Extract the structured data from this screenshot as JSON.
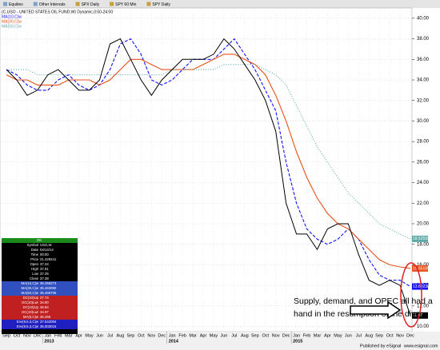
{
  "toolbar": [
    "Equities",
    "Other Intervals",
    "SPX Daily",
    "SPY 60 Min",
    "SPY Daily"
  ],
  "chart_data": {
    "type": "line",
    "title": "(C,USO - UNITED STATES OIL FUND,W) Dynamic,0:00-24:00",
    "categories": [
      "Sep",
      "Oct",
      "Nov",
      "Dec",
      "Jan",
      "Feb",
      "Mar",
      "Apr",
      "May",
      "Jun",
      "Jul",
      "Aug",
      "Sep",
      "Oct",
      "Nov",
      "Dec",
      "Jan",
      "Feb",
      "Mar",
      "Apr",
      "May",
      "Jun",
      "Jul",
      "Aug",
      "Sep",
      "Oct",
      "Nov",
      "Dec",
      "Jan",
      "Feb",
      "Mar",
      "Apr",
      "May",
      "Jun",
      "Jul",
      "Aug",
      "Sep",
      "Oct",
      "Nov",
      "Dec"
    ],
    "years": [
      "2013",
      "2014",
      "2015"
    ],
    "series": [
      {
        "name": "MA(10,C)w",
        "color": "#1010ff",
        "dash": "4,2",
        "last_label": "13.892384",
        "values": [
          35,
          34.5,
          33.5,
          33,
          33,
          34,
          34.5,
          33.5,
          33,
          33.5,
          35,
          37.5,
          38,
          36.5,
          34,
          33.5,
          34,
          35,
          36,
          36,
          36,
          37,
          38,
          36.5,
          35,
          33,
          31,
          26,
          22,
          19.5,
          18.5,
          18,
          18.5,
          19.5,
          18.5,
          16.5,
          15,
          14.5,
          14.5,
          13.89
        ]
      },
      {
        "name": "MA(30,C)w",
        "color": "#e8501a",
        "dash": "",
        "last_label": "15.651854",
        "values": [
          34.5,
          34,
          34,
          33.5,
          33.5,
          33.5,
          34,
          34,
          34,
          33.5,
          34,
          35,
          36,
          36,
          35.5,
          35,
          35,
          35,
          35,
          35.5,
          36,
          36.5,
          36.5,
          36,
          35.5,
          34.5,
          32.5,
          30,
          27,
          24.5,
          22.5,
          21,
          20,
          19.5,
          18.5,
          17.5,
          16.5,
          16,
          15.8,
          15.65
        ]
      },
      {
        "name": "MA(50,C)w",
        "color": "#5fa8a8",
        "dash": "1,2",
        "last_label": "18.525921",
        "values": [
          35,
          35,
          35,
          34.5,
          34.5,
          34.5,
          34.5,
          34.5,
          34.5,
          34.5,
          34.5,
          34.5,
          34.5,
          34.5,
          34.5,
          34.5,
          35,
          35,
          35,
          35,
          35,
          35.5,
          35.5,
          35.5,
          35.5,
          35,
          34.5,
          33.5,
          31.5,
          29.5,
          27.5,
          26,
          24.5,
          23,
          22,
          21,
          20,
          19.5,
          19,
          18.53
        ]
      },
      {
        "name": "USO",
        "color": "#000000",
        "dash": "",
        "last_label": "11.07",
        "values": [
          35,
          34,
          32.5,
          33,
          34.5,
          35,
          34,
          33,
          33,
          34,
          37.5,
          38,
          36,
          34,
          32.5,
          34,
          35,
          36,
          36,
          36,
          36.5,
          38,
          37,
          35.5,
          34,
          32,
          29,
          22,
          19,
          19,
          17.5,
          19.5,
          20,
          20,
          17,
          14.5,
          14,
          14.5,
          14,
          11.07
        ]
      }
    ],
    "ylim": [
      9.5,
      41
    ],
    "yticks": [
      {
        "value": 10,
        "label": "10.00"
      },
      {
        "value": 12,
        "label": "12.00"
      },
      {
        "value": 14,
        "label": "14.00"
      },
      {
        "value": 16,
        "label": "16.00"
      },
      {
        "value": 18,
        "label": "18.00"
      },
      {
        "value": 20,
        "label": "20.00"
      },
      {
        "value": 22,
        "label": "22.00"
      },
      {
        "value": 24,
        "label": "24.00"
      },
      {
        "value": 26,
        "label": "26.00"
      },
      {
        "value": 28,
        "label": "28.00"
      },
      {
        "value": 30,
        "label": "30.00"
      },
      {
        "value": 32,
        "label": "32.00"
      },
      {
        "value": 34,
        "label": "34.00"
      },
      {
        "value": 36,
        "label": "36.00"
      },
      {
        "value": 38,
        "label": "38.00"
      },
      {
        "value": 40,
        "label": "40.00"
      }
    ],
    "grid": true,
    "annotation": [
      "Supply, demand, and OPEC  all had a",
      "hand in the resumption of the dive"
    ]
  },
  "data_window": {
    "title": "OK",
    "rows": [
      [
        "Symbol",
        "USO,W"
      ],
      [
        "Date",
        "04/14/14"
      ],
      [
        "Time",
        "00:00"
      ],
      [
        "Price",
        "21.429241"
      ],
      [
        "Open",
        "37.34"
      ],
      [
        "High",
        "37.81"
      ],
      [
        "Low",
        "37.25"
      ],
      [
        "Close",
        "37.38"
      ],
      [
        "MA(10,C)w",
        "36.258273"
      ],
      [
        "MA(30,C)w",
        "35.463090"
      ],
      [
        "MA(50,C)w",
        "35.468705"
      ],
      [
        "DC(10)Up",
        "37.74"
      ],
      [
        "DC(10)Lwr",
        "34.90"
      ],
      [
        "DC(10)Up",
        "36.84"
      ],
      [
        "DC(10)Lwr",
        "34.97"
      ],
      [
        "MA(5,C)w",
        "36.268"
      ],
      [
        "Env(9,5,3,C)w",
        "37.542094"
      ],
      [
        "Env(9,5,3,C)w",
        "35.003015"
      ]
    ]
  },
  "footer": [
    "Published by eSignal",
    "www.esignal.com"
  ]
}
